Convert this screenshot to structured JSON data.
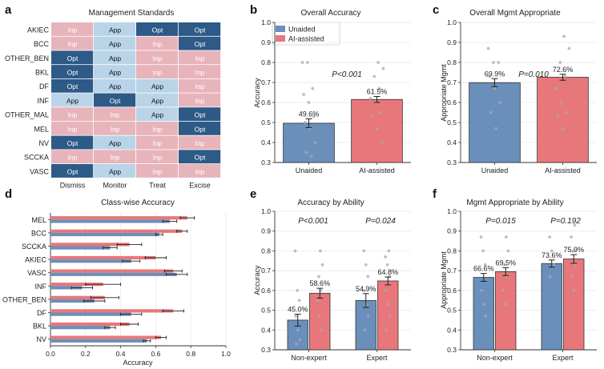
{
  "colors": {
    "unaided": "#6a8fba",
    "ai": "#e8777b",
    "inp": "#e8b4bb",
    "app": "#b9d4e8",
    "opt": "#2d5a87",
    "dot": "#aaaaaa",
    "axis": "#333333"
  },
  "panels": {
    "a": "a",
    "b": "b",
    "c": "c",
    "d": "d",
    "e": "e",
    "f": "f"
  },
  "chart_data": [
    {
      "panel": "a",
      "type": "heatmap",
      "title": "Management Standards",
      "rows": [
        "AKIEC",
        "BCC",
        "OTHER_BEN",
        "BKL",
        "DF",
        "INF",
        "OTHER_MAL",
        "MEL",
        "NV",
        "SCCKA",
        "VASC"
      ],
      "columns": [
        "Dismiss",
        "Monitor",
        "Treat",
        "Excise"
      ],
      "cells": [
        [
          "Inp",
          "App",
          "Opt",
          "Opt"
        ],
        [
          "Inp",
          "App",
          "Inp",
          "Opt"
        ],
        [
          "Opt",
          "App",
          "Inp",
          "Inp"
        ],
        [
          "Opt",
          "App",
          "Inp",
          "Inp"
        ],
        [
          "Opt",
          "App",
          "App",
          "Inp"
        ],
        [
          "App",
          "Opt",
          "App",
          "Inp"
        ],
        [
          "Inp",
          "Inp",
          "App",
          "Opt"
        ],
        [
          "Inp",
          "Inp",
          "Inp",
          "Opt"
        ],
        [
          "Opt",
          "App",
          "Inp",
          "Inp"
        ],
        [
          "Inp",
          "Inp",
          "Inp",
          "Opt"
        ],
        [
          "Opt",
          "App",
          "Inp",
          "Inp"
        ]
      ]
    },
    {
      "panel": "b",
      "type": "bar",
      "title": "Overall Accuracy",
      "ylabel": "Accuracy",
      "ylim": [
        0.3,
        1.0
      ],
      "yticks": [
        "0.3",
        "0.4",
        "0.5",
        "0.6",
        "0.7",
        "0.8",
        "0.9",
        "1.0"
      ],
      "categories": [
        "Unaided",
        "AI-assisted"
      ],
      "values": [
        0.496,
        0.615
      ],
      "errors": [
        0.022,
        0.015
      ],
      "value_labels": [
        "49.6%",
        "61.5%"
      ],
      "pvalue": "P<0.001",
      "legend": [
        "Unaided",
        "AI-assisted"
      ],
      "points": [
        [
          0.8,
          0.8,
          0.67,
          0.64,
          0.6,
          0.53,
          0.5,
          0.47,
          0.4,
          0.35,
          0.33
        ],
        [
          0.8,
          0.77,
          0.73,
          0.67,
          0.62,
          0.6,
          0.55,
          0.53,
          0.47,
          0.4
        ]
      ]
    },
    {
      "panel": "c",
      "type": "bar",
      "title": "Overall Mgmt Appropriate",
      "ylabel": "Appropriate Mgmt",
      "ylim": [
        0.3,
        1.0
      ],
      "yticks": [
        "0.3",
        "0.4",
        "0.5",
        "0.6",
        "0.7",
        "0.8",
        "0.9",
        "1.0"
      ],
      "categories": [
        "Unaided",
        "AI-assisted"
      ],
      "values": [
        0.699,
        0.726
      ],
      "errors": [
        0.02,
        0.015
      ],
      "value_labels": [
        "69.9%",
        "72.6%"
      ],
      "pvalue": "P=0.010",
      "points": [
        [
          0.87,
          0.8,
          0.8,
          0.73,
          0.67,
          0.6,
          0.55,
          0.47
        ],
        [
          0.93,
          0.87,
          0.8,
          0.73,
          0.67,
          0.6,
          0.55,
          0.53,
          0.47
        ]
      ]
    },
    {
      "panel": "d",
      "type": "bar",
      "orientation": "horizontal",
      "title": "Class-wise Accuracy",
      "xlabel": "Accuracy",
      "xlim": [
        0.0,
        1.0
      ],
      "xticks": [
        "0.0",
        "0.2",
        "0.4",
        "0.6",
        "0.8",
        "1.0"
      ],
      "categories": [
        "MEL",
        "BCC",
        "SCCKA",
        "AKIEC",
        "VASC",
        "INF",
        "OTHER_BEN",
        "DF",
        "BKL",
        "NV"
      ],
      "series": [
        {
          "values": [
            0.78,
            0.75,
            0.45,
            0.6,
            0.7,
            0.3,
            0.31,
            0.7,
            0.45,
            0.63
          ],
          "errors": [
            0.04,
            0.03,
            0.07,
            0.06,
            0.05,
            0.1,
            0.08,
            0.06,
            0.05,
            0.03
          ]
        },
        {
          "values": [
            0.68,
            0.62,
            0.34,
            0.46,
            0.72,
            0.18,
            0.25,
            0.46,
            0.34,
            0.55
          ],
          "errors": [
            0.04,
            0.02,
            0.04,
            0.05,
            0.06,
            0.06,
            0.06,
            0.06,
            0.03,
            0.02
          ]
        }
      ]
    },
    {
      "panel": "e",
      "type": "bar",
      "title": "Accuracy by Ability",
      "ylabel": "Accuracy",
      "ylim": [
        0.3,
        1.0
      ],
      "yticks": [
        "0.3",
        "0.4",
        "0.5",
        "0.6",
        "0.7",
        "0.8",
        "0.9",
        "1.0"
      ],
      "categories": [
        "Non-expert",
        "Expert"
      ],
      "series": [
        {
          "values": [
            0.45,
            0.549
          ],
          "errors": [
            0.03,
            0.035
          ],
          "value_labels": [
            "45.0%",
            "54.9%"
          ]
        },
        {
          "values": [
            0.586,
            0.648
          ],
          "errors": [
            0.025,
            0.02
          ],
          "value_labels": [
            "58.6%",
            "64.8%"
          ]
        }
      ],
      "pvalues": [
        "P<0.001",
        "P=0.024"
      ],
      "points": [
        [
          [
            0.8,
            0.6,
            0.55,
            0.47,
            0.4,
            0.35,
            0.33
          ],
          [
            0.8,
            0.73,
            0.67,
            0.6,
            0.55,
            0.47,
            0.4
          ]
        ],
        [
          [
            0.8,
            0.73,
            0.67,
            0.6,
            0.53,
            0.47,
            0.4
          ],
          [
            0.8,
            0.77,
            0.73,
            0.67,
            0.6,
            0.53,
            0.47,
            0.4
          ]
        ]
      ]
    },
    {
      "panel": "f",
      "type": "bar",
      "title": "Mgmt Appropriate by Ability",
      "ylabel": "Appropriate Mgmt",
      "ylim": [
        0.3,
        1.0
      ],
      "yticks": [
        "0.3",
        "0.4",
        "0.5",
        "0.6",
        "0.7",
        "0.8",
        "0.9",
        "1.0"
      ],
      "categories": [
        "Non-expert",
        "Expert"
      ],
      "series": [
        {
          "values": [
            0.666,
            0.736
          ],
          "errors": [
            0.02,
            0.018
          ],
          "value_labels": [
            "66.6%",
            "73.6%"
          ]
        },
        {
          "values": [
            0.695,
            0.759
          ],
          "errors": [
            0.02,
            0.022
          ],
          "value_labels": [
            "69.5%",
            "75.9%"
          ]
        }
      ],
      "pvalues": [
        "P=0.015",
        "P=0.192"
      ],
      "points": [
        [
          [
            0.87,
            0.8,
            0.73,
            0.6,
            0.53,
            0.47
          ],
          [
            0.87,
            0.8,
            0.73,
            0.67,
            0.6,
            0.53
          ]
        ],
        [
          [
            0.87,
            0.8,
            0.73,
            0.67
          ],
          [
            0.93,
            0.87,
            0.8,
            0.73,
            0.67,
            0.6
          ]
        ]
      ]
    }
  ]
}
